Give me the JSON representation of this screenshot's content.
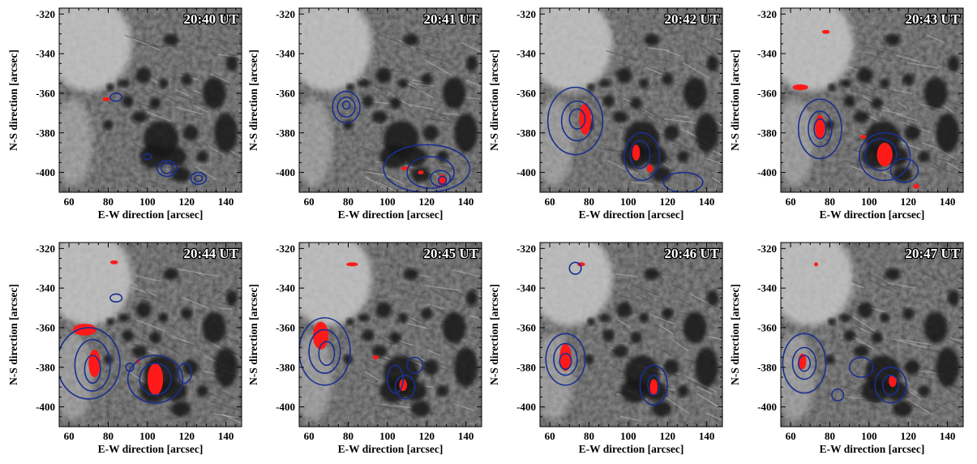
{
  "colors": {
    "contour": "#1a2f8f",
    "emission": "#ff1a1a",
    "frame": "#000000",
    "background": "#ffffff"
  },
  "chart_data": [
    {
      "type": "image",
      "title": "20:40 UT",
      "xlabel": "E-W direction [arcsec]",
      "ylabel": "N-S direction [arcsec]",
      "xlim": [
        55,
        148
      ],
      "ylim": [
        -410,
        -317
      ],
      "xticks": [
        60,
        80,
        100,
        120,
        140
      ],
      "yticks": [
        -320,
        -340,
        -360,
        -380,
        -400
      ],
      "contours": [
        [
          84,
          -362,
          3,
          2
        ],
        [
          110,
          -398,
          5,
          4
        ],
        [
          110,
          -398,
          3,
          2.5
        ],
        [
          126,
          -403,
          4,
          3
        ],
        [
          126,
          -403,
          2,
          1.6
        ],
        [
          100,
          -392,
          2,
          1.5
        ]
      ],
      "emission": [
        [
          79,
          -363,
          2,
          1
        ]
      ]
    },
    {
      "type": "image",
      "title": "20:41 UT",
      "xlabel": "E-W direction [arcsec]",
      "ylabel": "N-S direction [arcsec]",
      "xlim": [
        55,
        148
      ],
      "ylim": [
        -410,
        -317
      ],
      "xticks": [
        60,
        80,
        100,
        120,
        140
      ],
      "yticks": [
        -320,
        -340,
        -360,
        -380,
        -400
      ],
      "contours": [
        [
          79,
          -367,
          7,
          8
        ],
        [
          79,
          -367,
          4.5,
          5
        ],
        [
          79,
          -366,
          1.8,
          2
        ],
        [
          120,
          -398,
          22,
          12
        ],
        [
          122,
          -400,
          12,
          8
        ],
        [
          127,
          -403,
          5,
          4
        ],
        [
          128,
          -404,
          2,
          2
        ]
      ],
      "emission": [
        [
          128,
          -404,
          2,
          3
        ],
        [
          109,
          -398,
          2,
          1
        ],
        [
          117,
          -400,
          1.5,
          1
        ]
      ]
    },
    {
      "type": "image",
      "title": "20:42 UT",
      "xlabel": "E-W direction [arcsec]",
      "ylabel": "N-S direction [arcsec]",
      "xlim": [
        55,
        148
      ],
      "ylim": [
        -410,
        -317
      ],
      "xticks": [
        60,
        80,
        100,
        120,
        140
      ],
      "yticks": [
        -320,
        -340,
        -360,
        -380,
        -400
      ],
      "contours": [
        [
          73,
          -374,
          14,
          17
        ],
        [
          74,
          -374,
          8,
          10
        ],
        [
          74,
          -373,
          4,
          5
        ],
        [
          107,
          -392,
          9,
          12
        ],
        [
          106,
          -391,
          5,
          7
        ],
        [
          128,
          -405,
          10,
          5
        ]
      ],
      "emission": [
        [
          78,
          -373,
          3,
          8
        ],
        [
          104,
          -390,
          2,
          4
        ],
        [
          111,
          -398,
          1.5,
          2
        ]
      ]
    },
    {
      "type": "image",
      "title": "20:43 UT",
      "xlabel": "E-W direction [arcsec]",
      "ylabel": "N-S direction [arcsec]",
      "xlim": [
        55,
        148
      ],
      "ylim": [
        -410,
        -317
      ],
      "xticks": [
        60,
        80,
        100,
        120,
        140
      ],
      "yticks": [
        -320,
        -340,
        -360,
        -380,
        -400
      ],
      "contours": [
        [
          75,
          -378,
          11,
          15
        ],
        [
          75,
          -378,
          6,
          9
        ],
        [
          75,
          -378,
          3,
          5
        ],
        [
          108,
          -392,
          13,
          12
        ],
        [
          106,
          -391,
          8,
          8
        ],
        [
          118,
          -399,
          7,
          6
        ]
      ],
      "emission": [
        [
          75,
          -377,
          2.5,
          6
        ],
        [
          108,
          -391,
          4,
          6
        ],
        [
          65,
          -357,
          4,
          1.5
        ],
        [
          78,
          -329,
          2,
          1
        ],
        [
          124,
          -407,
          1.5,
          1.2
        ],
        [
          97,
          -382,
          1.5,
          1
        ]
      ]
    },
    {
      "type": "image",
      "title": "20:44 UT",
      "xlabel": "E-W direction [arcsec]",
      "ylabel": "N-S direction [arcsec]",
      "xlim": [
        55,
        148
      ],
      "ylim": [
        -410,
        -317
      ],
      "xticks": [
        60,
        80,
        100,
        120,
        140
      ],
      "yticks": [
        -320,
        -340,
        -360,
        -380,
        -400
      ],
      "contours": [
        [
          70,
          -378,
          16,
          18
        ],
        [
          72,
          -379,
          9,
          13
        ],
        [
          72,
          -381,
          4,
          7
        ],
        [
          84,
          -345,
          3,
          2
        ],
        [
          104,
          -386,
          14,
          12
        ],
        [
          104,
          -386,
          8,
          8
        ],
        [
          119,
          -383,
          3.5,
          5
        ],
        [
          91,
          -380,
          2,
          2
        ]
      ],
      "emission": [
        [
          68,
          -361,
          6,
          3
        ],
        [
          73,
          -378,
          3,
          7
        ],
        [
          104,
          -386,
          4,
          8
        ],
        [
          83,
          -327,
          2,
          1
        ],
        [
          95,
          -377,
          1,
          1
        ]
      ]
    },
    {
      "type": "image",
      "title": "20:45 UT",
      "xlabel": "E-W direction [arcsec]",
      "ylabel": "N-S direction [arcsec]",
      "xlim": [
        55,
        148
      ],
      "ylim": [
        -410,
        -317
      ],
      "xticks": [
        60,
        80,
        100,
        120,
        140
      ],
      "yticks": [
        -320,
        -340,
        -360,
        -380,
        -400
      ],
      "contours": [
        [
          68,
          -372,
          13,
          17
        ],
        [
          68,
          -372,
          8,
          11
        ],
        [
          69,
          -373,
          4,
          6
        ],
        [
          104,
          -386,
          4,
          7
        ],
        [
          109,
          -390,
          5,
          6
        ],
        [
          114,
          -379,
          4,
          4
        ]
      ],
      "emission": [
        [
          66,
          -364,
          4,
          7
        ],
        [
          82,
          -328,
          3,
          1
        ],
        [
          108,
          -389,
          2,
          3
        ],
        [
          94,
          -375,
          1.5,
          1
        ]
      ]
    },
    {
      "type": "image",
      "title": "20:46 UT",
      "xlabel": "E-W direction [arcsec]",
      "ylabel": "N-S direction [arcsec]",
      "xlim": [
        55,
        148
      ],
      "ylim": [
        -410,
        -317
      ],
      "xticks": [
        60,
        80,
        100,
        120,
        140
      ],
      "yticks": [
        -320,
        -340,
        -360,
        -380,
        -400
      ],
      "contours": [
        [
          68,
          -376,
          10,
          13
        ],
        [
          68,
          -376,
          6,
          8
        ],
        [
          68,
          -377,
          3,
          4
        ],
        [
          113,
          -389,
          7,
          10
        ],
        [
          113,
          -389,
          3,
          5
        ],
        [
          73,
          -330,
          3,
          3
        ]
      ],
      "emission": [
        [
          68,
          -375,
          3,
          7
        ],
        [
          113,
          -390,
          2,
          4
        ],
        [
          76,
          -328,
          2,
          1
        ]
      ]
    },
    {
      "type": "image",
      "title": "20:47 UT",
      "xlabel": "E-W direction [arcsec]",
      "ylabel": "N-S direction [arcsec]",
      "xlim": [
        55,
        148
      ],
      "ylim": [
        -410,
        -317
      ],
      "xticks": [
        60,
        80,
        100,
        120,
        140
      ],
      "yticks": [
        -320,
        -340,
        -360,
        -380,
        -400
      ],
      "contours": [
        [
          67,
          -378,
          11,
          15
        ],
        [
          67,
          -378,
          6,
          8
        ],
        [
          67,
          -378,
          3,
          4
        ],
        [
          96,
          -380,
          6,
          5
        ],
        [
          111,
          -389,
          8,
          9
        ],
        [
          111,
          -389,
          4,
          5
        ],
        [
          84,
          -394,
          3,
          3
        ]
      ],
      "emission": [
        [
          66,
          -377,
          2,
          4
        ],
        [
          112,
          -387,
          2,
          3
        ],
        [
          73,
          -328,
          1,
          1
        ]
      ]
    }
  ]
}
